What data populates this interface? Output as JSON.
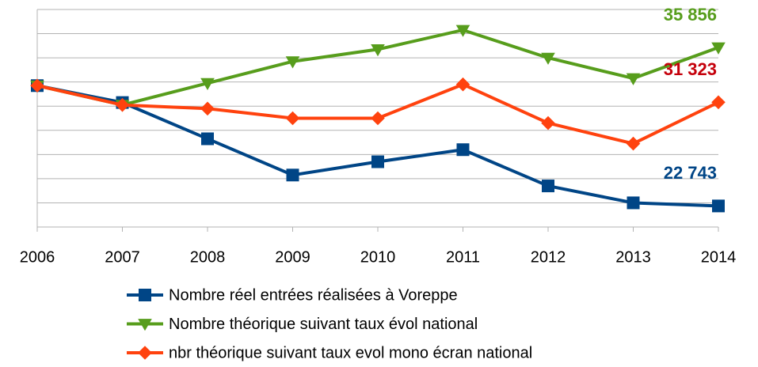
{
  "chart_data": {
    "type": "line",
    "categories": [
      "2006",
      "2007",
      "2008",
      "2009",
      "2010",
      "2011",
      "2012",
      "2013",
      "2014"
    ],
    "series": [
      {
        "name": "Nombre réel entrées réalisées à Voreppe",
        "color": "#004586",
        "marker": "square",
        "label_color": "#004586",
        "values": [
          32700,
          31300,
          28300,
          25300,
          26400,
          27400,
          24400,
          23000,
          22743
        ],
        "value_labels": [
          null,
          null,
          null,
          null,
          null,
          null,
          null,
          null,
          "22 743"
        ]
      },
      {
        "name": "Nombre théorique suivant taux évol national",
        "color": "#579d1c",
        "marker": "triangle-down",
        "label_color": "#579d1c",
        "values": [
          32700,
          31100,
          32900,
          34700,
          35700,
          37300,
          35000,
          33300,
          35856
        ],
        "value_labels": [
          null,
          null,
          null,
          null,
          null,
          null,
          null,
          null,
          "35 856"
        ]
      },
      {
        "name": "nbr théorique suivant taux evol mono écran national",
        "color": "#ff420e",
        "marker": "diamond",
        "label_color": "#c5000b",
        "values": [
          32700,
          31100,
          30800,
          30000,
          30000,
          32800,
          29600,
          27900,
          31323
        ],
        "value_labels": [
          null,
          null,
          null,
          null,
          null,
          null,
          null,
          null,
          "31 323"
        ]
      }
    ],
    "ylim": [
      21000,
      39000
    ],
    "yticks": [
      21000,
      23000,
      25000,
      27000,
      29000,
      31000,
      33000,
      35000,
      37000,
      39000
    ],
    "grid": true
  }
}
